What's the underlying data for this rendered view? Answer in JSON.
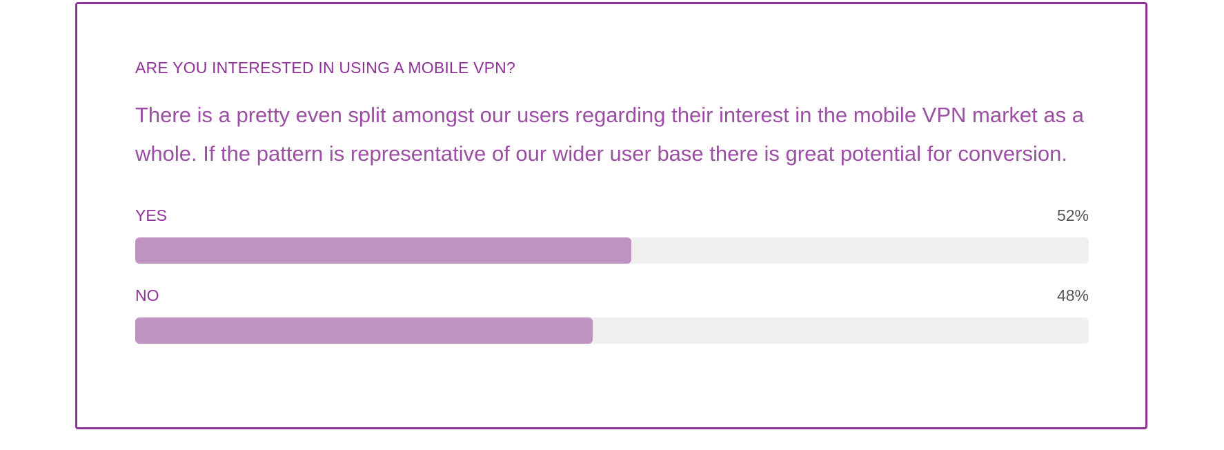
{
  "chart_data": {
    "type": "bar",
    "orientation": "horizontal",
    "title": "ARE YOU INTERESTED IN USING A MOBILE VPN?",
    "subtitle": "There is a pretty even split amongst our users regarding their interest in the mobile VPN market as a whole. If the pattern is representative of our wider user base there is great potential for conversion.",
    "categories": [
      "YES",
      "NO"
    ],
    "values": [
      52,
      48
    ],
    "value_labels": [
      "52%",
      "48%"
    ],
    "xlim": [
      0,
      100
    ],
    "unit": "%",
    "grid": false,
    "colors": {
      "border": "#8e3196",
      "title": "#8e3196",
      "text": "#9a4fa3",
      "bar_fill": "#bf92c2",
      "bar_track": "#f0f0f0",
      "value_text": "#555555"
    }
  }
}
